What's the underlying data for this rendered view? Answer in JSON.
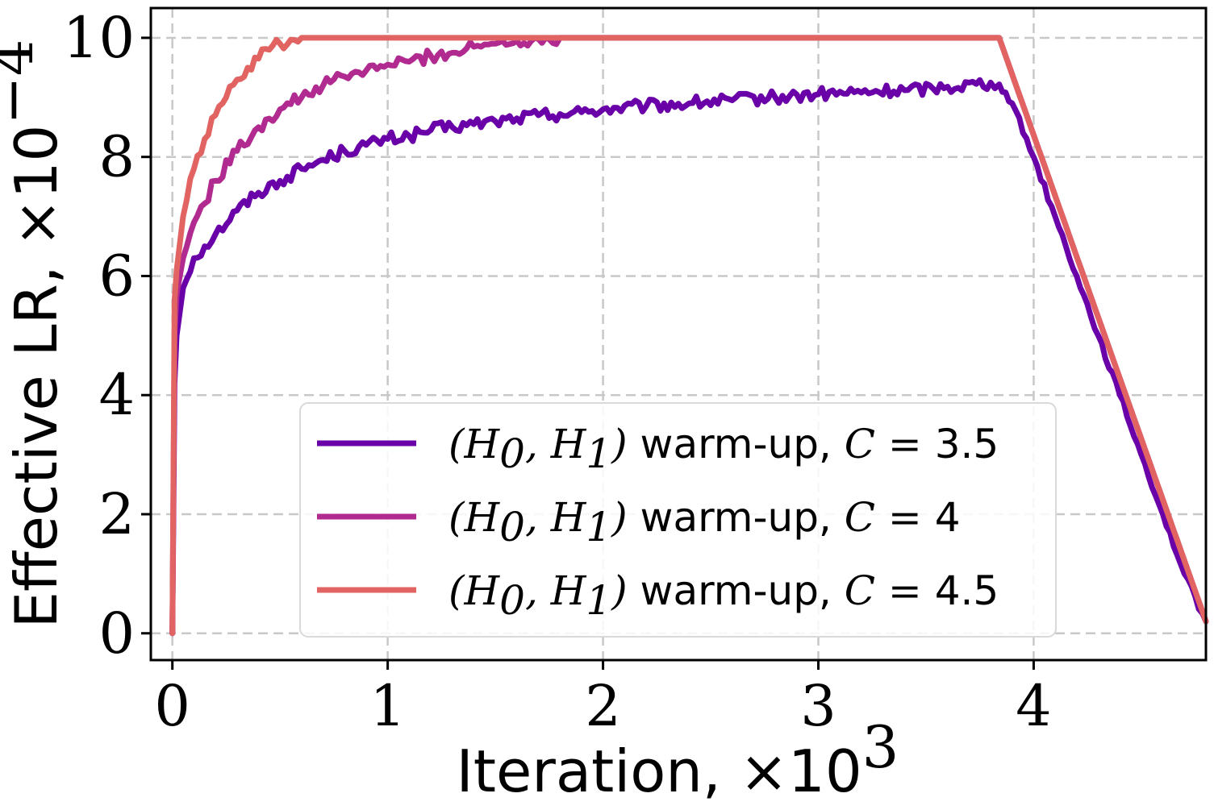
{
  "chart_data": {
    "type": "line",
    "title": "",
    "xlabel": "Iteration, ×10",
    "xlabel_exponent": "3",
    "ylabel": "Effective LR, ×10",
    "ylabel_exponent": "−4",
    "xlim": [
      -0.1,
      4.8
    ],
    "ylim": [
      -0.45,
      10.5
    ],
    "xticks": [
      0,
      1,
      2,
      3,
      4
    ],
    "xtick_labels": [
      "0",
      "1",
      "2",
      "3",
      "4"
    ],
    "yticks": [
      0,
      2,
      4,
      6,
      8,
      10
    ],
    "ytick_labels": [
      "0",
      "2",
      "4",
      "6",
      "8",
      "10"
    ],
    "grid": true,
    "legend_position": "lower-center",
    "series": [
      {
        "name": "(H0, H1) warm-up, C = 3.5",
        "legend_prefix": "(H",
        "legend_sub0": "0",
        "legend_mid": ", H",
        "legend_sub1": "1",
        "legend_close": ")",
        "legend_text": " warm-up, ",
        "legend_var": "C",
        "legend_eq": " = ",
        "legend_value": "3.5",
        "color": "#6a00a8",
        "x": [
          0,
          0.01,
          0.02,
          0.05,
          0.1,
          0.2,
          0.3,
          0.4,
          0.5,
          0.6,
          0.7,
          0.8,
          0.9,
          1.0,
          1.1,
          1.2,
          1.3,
          1.4,
          1.5,
          1.6,
          1.7,
          1.8,
          1.9,
          2.0,
          2.2,
          2.4,
          2.6,
          2.8,
          3.0,
          3.2,
          3.4,
          3.6,
          3.8,
          3.84,
          3.9,
          4.0,
          4.1,
          4.2,
          4.3,
          4.4,
          4.5,
          4.6,
          4.7,
          4.8
        ],
        "y": [
          0,
          4.2,
          5.0,
          5.8,
          6.3,
          6.7,
          7.1,
          7.4,
          7.6,
          7.8,
          7.95,
          8.1,
          8.2,
          8.3,
          8.35,
          8.45,
          8.5,
          8.55,
          8.6,
          8.65,
          8.7,
          8.72,
          8.75,
          8.8,
          8.85,
          8.9,
          8.95,
          9.0,
          9.05,
          9.08,
          9.12,
          9.18,
          9.25,
          9.22,
          8.9,
          8.0,
          7.0,
          6.0,
          5.0,
          4.0,
          3.0,
          2.0,
          1.0,
          0.2
        ]
      },
      {
        "name": "(H0, H1) warm-up, C = 4",
        "legend_prefix": "(H",
        "legend_sub0": "0",
        "legend_mid": ", H",
        "legend_sub1": "1",
        "legend_close": ")",
        "legend_text": " warm-up, ",
        "legend_var": "C",
        "legend_eq": " = ",
        "legend_value": "4",
        "color": "#b12a90",
        "x": [
          0,
          0.01,
          0.02,
          0.05,
          0.1,
          0.2,
          0.3,
          0.4,
          0.5,
          0.6,
          0.7,
          0.8,
          0.9,
          1.0,
          1.1,
          1.2,
          1.3,
          1.4,
          1.5,
          1.6,
          1.7,
          1.8,
          1.9,
          2.0,
          3.84,
          4.8
        ],
        "y": [
          0,
          5.0,
          5.7,
          6.3,
          6.9,
          7.6,
          8.1,
          8.5,
          8.8,
          9.0,
          9.2,
          9.35,
          9.45,
          9.55,
          9.6,
          9.7,
          9.75,
          9.85,
          9.9,
          9.95,
          9.98,
          10.0,
          10.0,
          10.0,
          10.0,
          0.2
        ]
      },
      {
        "name": "(H0, H1) warm-up, C = 4.5",
        "legend_prefix": "(H",
        "legend_sub0": "0",
        "legend_mid": ", H",
        "legend_sub1": "1",
        "legend_close": ")",
        "legend_text": " warm-up, ",
        "legend_var": "C",
        "legend_eq": " = ",
        "legend_value": "4.5",
        "color": "#e16462",
        "x": [
          0,
          0.01,
          0.02,
          0.05,
          0.1,
          0.15,
          0.2,
          0.25,
          0.3,
          0.35,
          0.4,
          0.45,
          0.5,
          0.55,
          0.6,
          0.65,
          3.84,
          4.8
        ],
        "y": [
          0,
          5.6,
          6.1,
          7.0,
          7.8,
          8.3,
          8.7,
          9.0,
          9.3,
          9.5,
          9.65,
          9.8,
          9.9,
          9.97,
          10.0,
          10.0,
          10.0,
          0.2
        ]
      }
    ]
  }
}
